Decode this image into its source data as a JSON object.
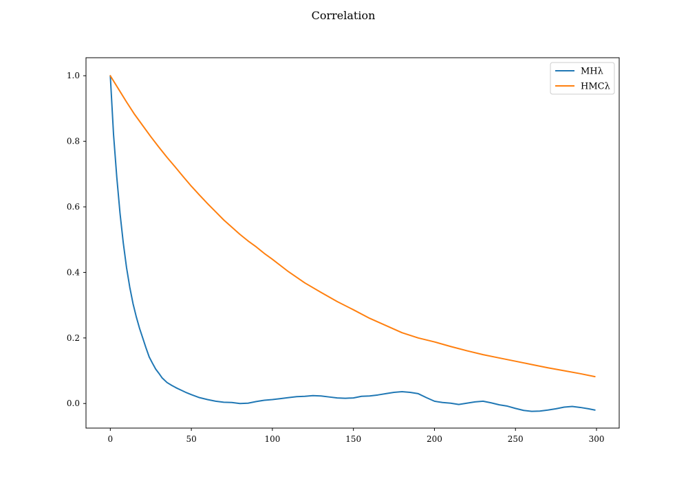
{
  "chart_data": {
    "type": "line",
    "title": "Correlation",
    "xlabel": "",
    "ylabel": "",
    "xlim": [
      -15,
      314
    ],
    "ylim": [
      -0.075,
      1.055
    ],
    "xticks": [
      0,
      50,
      100,
      150,
      200,
      250,
      300
    ],
    "yticks": [
      0.0,
      0.2,
      0.4,
      0.6,
      0.8,
      1.0
    ],
    "xtick_labels": [
      "0",
      "50",
      "100",
      "150",
      "200",
      "250",
      "300"
    ],
    "ytick_labels": [
      "0.0",
      "0.2",
      "0.4",
      "0.6",
      "0.8",
      "1.0"
    ],
    "grid": false,
    "legend_position": "top-right",
    "series": [
      {
        "name": "MHλ",
        "color": "#1f77b4",
        "x": [
          0,
          2,
          4,
          6,
          8,
          10,
          12,
          14,
          16,
          18,
          20,
          22,
          24,
          26,
          28,
          30,
          32,
          35,
          38,
          41,
          44,
          47,
          50,
          55,
          60,
          65,
          70,
          75,
          80,
          85,
          90,
          95,
          100,
          105,
          110,
          115,
          120,
          125,
          130,
          135,
          140,
          145,
          150,
          155,
          160,
          165,
          170,
          175,
          180,
          185,
          190,
          195,
          200,
          205,
          210,
          215,
          220,
          225,
          230,
          235,
          240,
          245,
          250,
          255,
          260,
          265,
          270,
          275,
          280,
          285,
          290,
          295,
          299
        ],
        "y": [
          1.0,
          0.82,
          0.69,
          0.58,
          0.49,
          0.415,
          0.355,
          0.305,
          0.265,
          0.23,
          0.2,
          0.17,
          0.142,
          0.123,
          0.105,
          0.092,
          0.078,
          0.064,
          0.055,
          0.047,
          0.04,
          0.033,
          0.027,
          0.018,
          0.012,
          0.007,
          0.004,
          0.003,
          0.0,
          0.001,
          0.006,
          0.01,
          0.012,
          0.015,
          0.018,
          0.021,
          0.022,
          0.024,
          0.023,
          0.02,
          0.017,
          0.016,
          0.017,
          0.022,
          0.023,
          0.026,
          0.03,
          0.034,
          0.036,
          0.034,
          0.03,
          0.018,
          0.007,
          0.003,
          0.001,
          -0.003,
          0.001,
          0.005,
          0.007,
          0.002,
          -0.004,
          -0.008,
          -0.015,
          -0.021,
          -0.024,
          -0.023,
          -0.02,
          -0.016,
          -0.011,
          -0.009,
          -0.012,
          -0.016,
          -0.02
        ]
      },
      {
        "name": "HMCλ",
        "color": "#ff7f0e",
        "x": [
          0,
          5,
          10,
          15,
          20,
          25,
          30,
          35,
          40,
          45,
          50,
          55,
          60,
          65,
          70,
          75,
          80,
          85,
          90,
          95,
          100,
          110,
          120,
          130,
          140,
          150,
          160,
          170,
          180,
          190,
          200,
          210,
          220,
          230,
          240,
          250,
          260,
          270,
          280,
          290,
          299
        ],
        "y": [
          1.0,
          0.96,
          0.92,
          0.882,
          0.848,
          0.814,
          0.782,
          0.751,
          0.722,
          0.692,
          0.663,
          0.636,
          0.61,
          0.585,
          0.56,
          0.538,
          0.516,
          0.496,
          0.478,
          0.458,
          0.44,
          0.402,
          0.368,
          0.339,
          0.311,
          0.286,
          0.26,
          0.238,
          0.216,
          0.2,
          0.188,
          0.174,
          0.161,
          0.149,
          0.139,
          0.129,
          0.119,
          0.109,
          0.1,
          0.091,
          0.082
        ]
      }
    ]
  }
}
